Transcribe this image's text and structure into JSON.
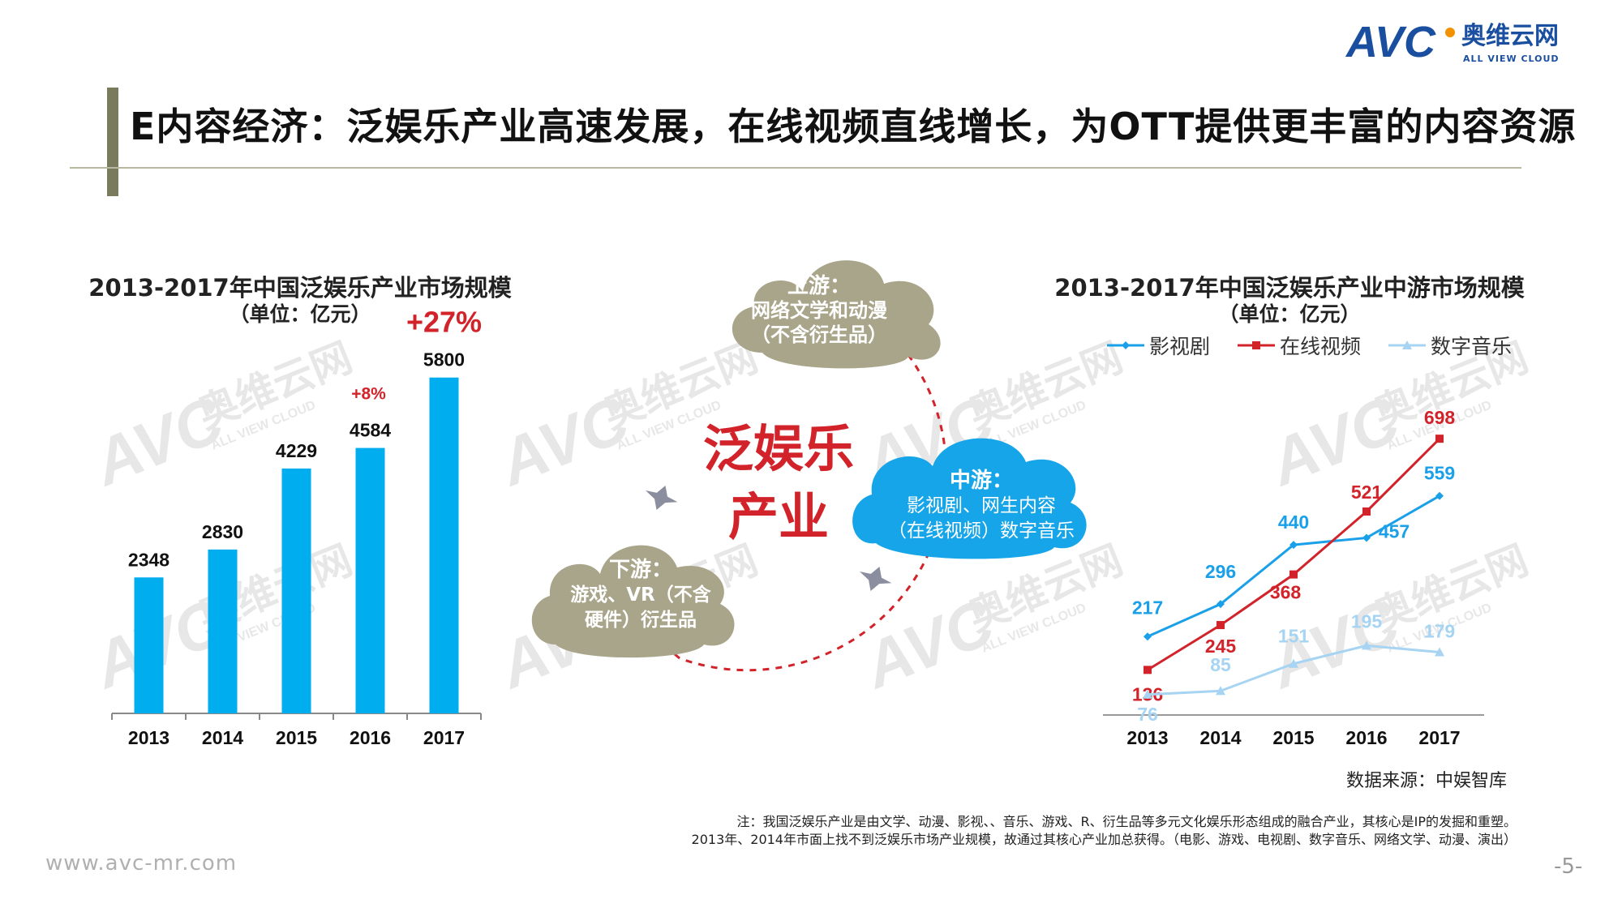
{
  "header": {
    "logo_text": "AVC",
    "logo_cn": "奥维云网",
    "logo_en": "ALL VIEW CLOUD",
    "title": "E内容经济：泛娱乐产业高速发展，在线视频直线增长，为OTT提供更丰富的内容资源"
  },
  "colors": {
    "bar": "#00AEEF",
    "video": "#1AA0E8",
    "online": "#D2232A",
    "music": "#A6D4F2",
    "cloud_gray": "#A9A58A",
    "cloud_blue": "#16A5E8",
    "accent_red": "#D2232A"
  },
  "center": {
    "title_line1": "泛娱乐",
    "title_line2": "产业",
    "upstream": {
      "l1": "上游：",
      "l2": "网络文学和动漫",
      "l3": "（不含衍生品）"
    },
    "midstream": {
      "l1": "中游：",
      "l2": "影视剧、网生内容",
      "l3": "（在线视频）数字音乐"
    },
    "downstream": {
      "l1": "下游：",
      "l2": "游戏、VR（不含",
      "l3": "硬件）衍生品"
    }
  },
  "chart_data": [
    {
      "type": "bar",
      "title": "2013-2017年中国泛娱乐产业市场规模",
      "subtitle": "（单位：亿元）",
      "categories": [
        "2013",
        "2014",
        "2015",
        "2016",
        "2017"
      ],
      "values": [
        2348,
        2830,
        4229,
        4584,
        5800
      ],
      "value_labels": [
        "2348",
        "2830",
        "4229",
        "4584",
        "5800"
      ],
      "ylim": [
        0,
        6300
      ],
      "annotations": [
        {
          "category": "2016",
          "text": "+8%"
        },
        {
          "category": "2017",
          "text": "+27%"
        }
      ]
    },
    {
      "type": "line",
      "title": "2013-2017年中国泛娱乐产业中游市场规模",
      "subtitle": "（单位：亿元）",
      "x": [
        "2013",
        "2014",
        "2015",
        "2016",
        "2017"
      ],
      "ylim": [
        50,
        720
      ],
      "series": [
        {
          "name": "影视剧",
          "values": [
            217,
            296,
            440,
            457,
            559
          ],
          "labels": [
            "217",
            "296",
            "440",
            "457",
            "559"
          ]
        },
        {
          "name": "在线视频",
          "values": [
            136,
            245,
            368,
            521,
            698
          ],
          "labels": [
            "136",
            "245",
            "368",
            "521",
            "698"
          ]
        },
        {
          "name": "数字音乐",
          "values": [
            76,
            85,
            151,
            195,
            179
          ],
          "labels": [
            "76",
            "85",
            "151",
            "195",
            "179"
          ]
        }
      ]
    }
  ],
  "footer": {
    "source": "数据来源：中娱智库",
    "note_line1": "注：我国泛娱乐产业是由文学、动漫、影视、、音乐、游戏、R、衍生品等多元文化娱乐形态组成的融合产业，其核心是IP的发掘和重塑。",
    "note_line2": "2013年、2014年市面上找不到泛娱乐市场产业规模，故通过其核心产业加总获得。（电影、游戏、电视剧、数字音乐、网络文学、动漫、演出）",
    "website": "www.avc-mr.com",
    "page": "-5-"
  }
}
